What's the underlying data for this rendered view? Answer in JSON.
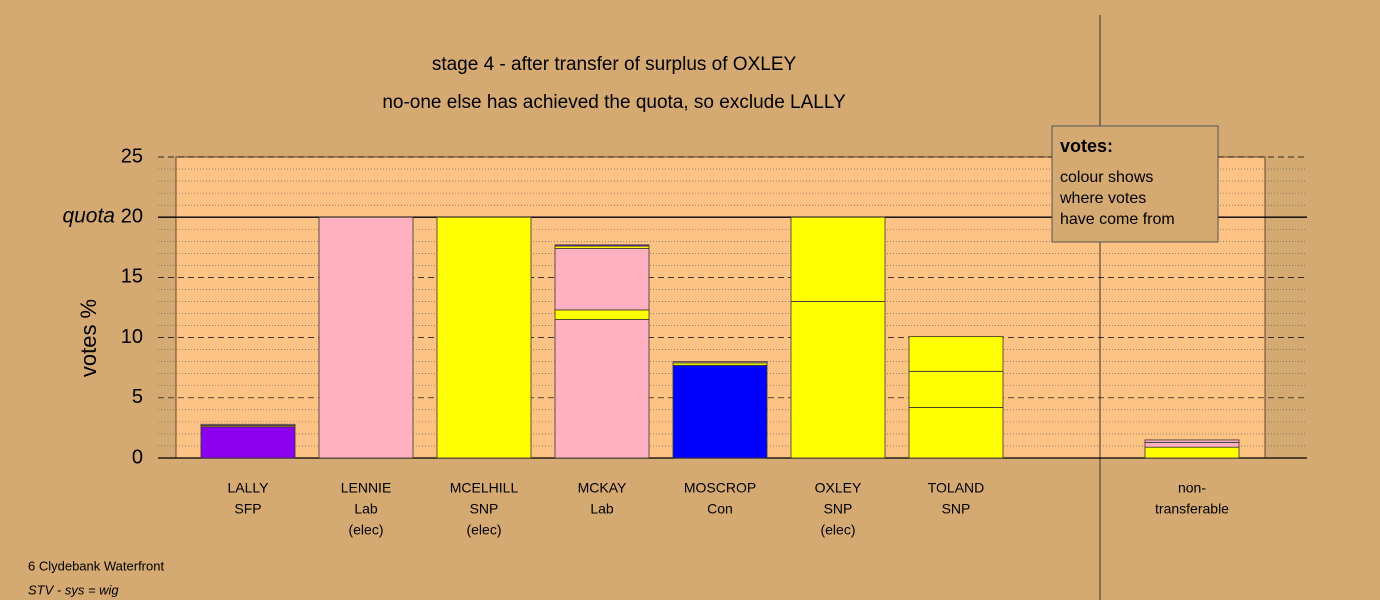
{
  "chart_data": {
    "type": "stacked-bar",
    "title": "stage 4 - after transfer of surplus of OXLEY",
    "subtitle": "no-one else has achieved the quota, so exclude LALLY",
    "y_label": "votes %",
    "ylim": [
      0,
      25
    ],
    "yticks": [
      0,
      5,
      10,
      15,
      20,
      25
    ],
    "quota": {
      "value": 20,
      "label": "quota"
    },
    "bars": [
      {
        "label": [
          "LALLY",
          "SFP"
        ],
        "segments": [
          {
            "value": 2.6,
            "color": "#8b00ee"
          },
          {
            "value": 0.1,
            "color": "#ffff00"
          },
          {
            "value": 0.1,
            "color": "#ffb0c0"
          }
        ]
      },
      {
        "label": [
          "LENNIE",
          "Lab",
          "(elec)"
        ],
        "segments": [
          {
            "value": 20,
            "color": "#ffb0c0"
          }
        ]
      },
      {
        "label": [
          "MCELHILL",
          "SNP",
          "(elec)"
        ],
        "segments": [
          {
            "value": 20,
            "color": "#ffff00"
          }
        ]
      },
      {
        "label": [
          "MCKAY",
          "Lab"
        ],
        "segments": [
          {
            "value": 11.5,
            "color": "#ffb0c0"
          },
          {
            "value": 0.8,
            "color": "#ffff00"
          },
          {
            "value": 5.1,
            "color": "#ffb0c0"
          },
          {
            "value": 0.2,
            "color": "#ffff00"
          },
          {
            "value": 0.1,
            "color": "#8b00ee"
          }
        ]
      },
      {
        "label": [
          "MOSCROP",
          "Con"
        ],
        "segments": [
          {
            "value": 7.7,
            "color": "#0000ff"
          },
          {
            "value": 0.2,
            "color": "#ffff00"
          },
          {
            "value": 0.1,
            "color": "#ffb0c0"
          }
        ]
      },
      {
        "label": [
          "OXLEY",
          "SNP",
          "(elec)"
        ],
        "segments": [
          {
            "value": 13.0,
            "color": "#ffff00"
          },
          {
            "value": 7.0,
            "color": "#ffff00"
          }
        ]
      },
      {
        "label": [
          "TOLAND",
          "SNP"
        ],
        "segments": [
          {
            "value": 4.2,
            "color": "#ffff00"
          },
          {
            "value": 3.0,
            "color": "#ffff00"
          },
          {
            "value": 2.9,
            "color": "#ffff00"
          }
        ]
      },
      {
        "label": [
          "non-",
          "transferable"
        ],
        "segments": [
          {
            "value": 0.9,
            "color": "#ffff00"
          },
          {
            "value": 0.4,
            "color": "#ffb0c0"
          },
          {
            "value": 0.2,
            "color": "#ffb0c0"
          }
        ]
      }
    ],
    "legend": {
      "title": "votes:",
      "lines": [
        "colour shows",
        "where votes",
        "have come from"
      ]
    },
    "footer": [
      "6 Clydebank Waterfront",
      "STV - sys = wig"
    ]
  }
}
